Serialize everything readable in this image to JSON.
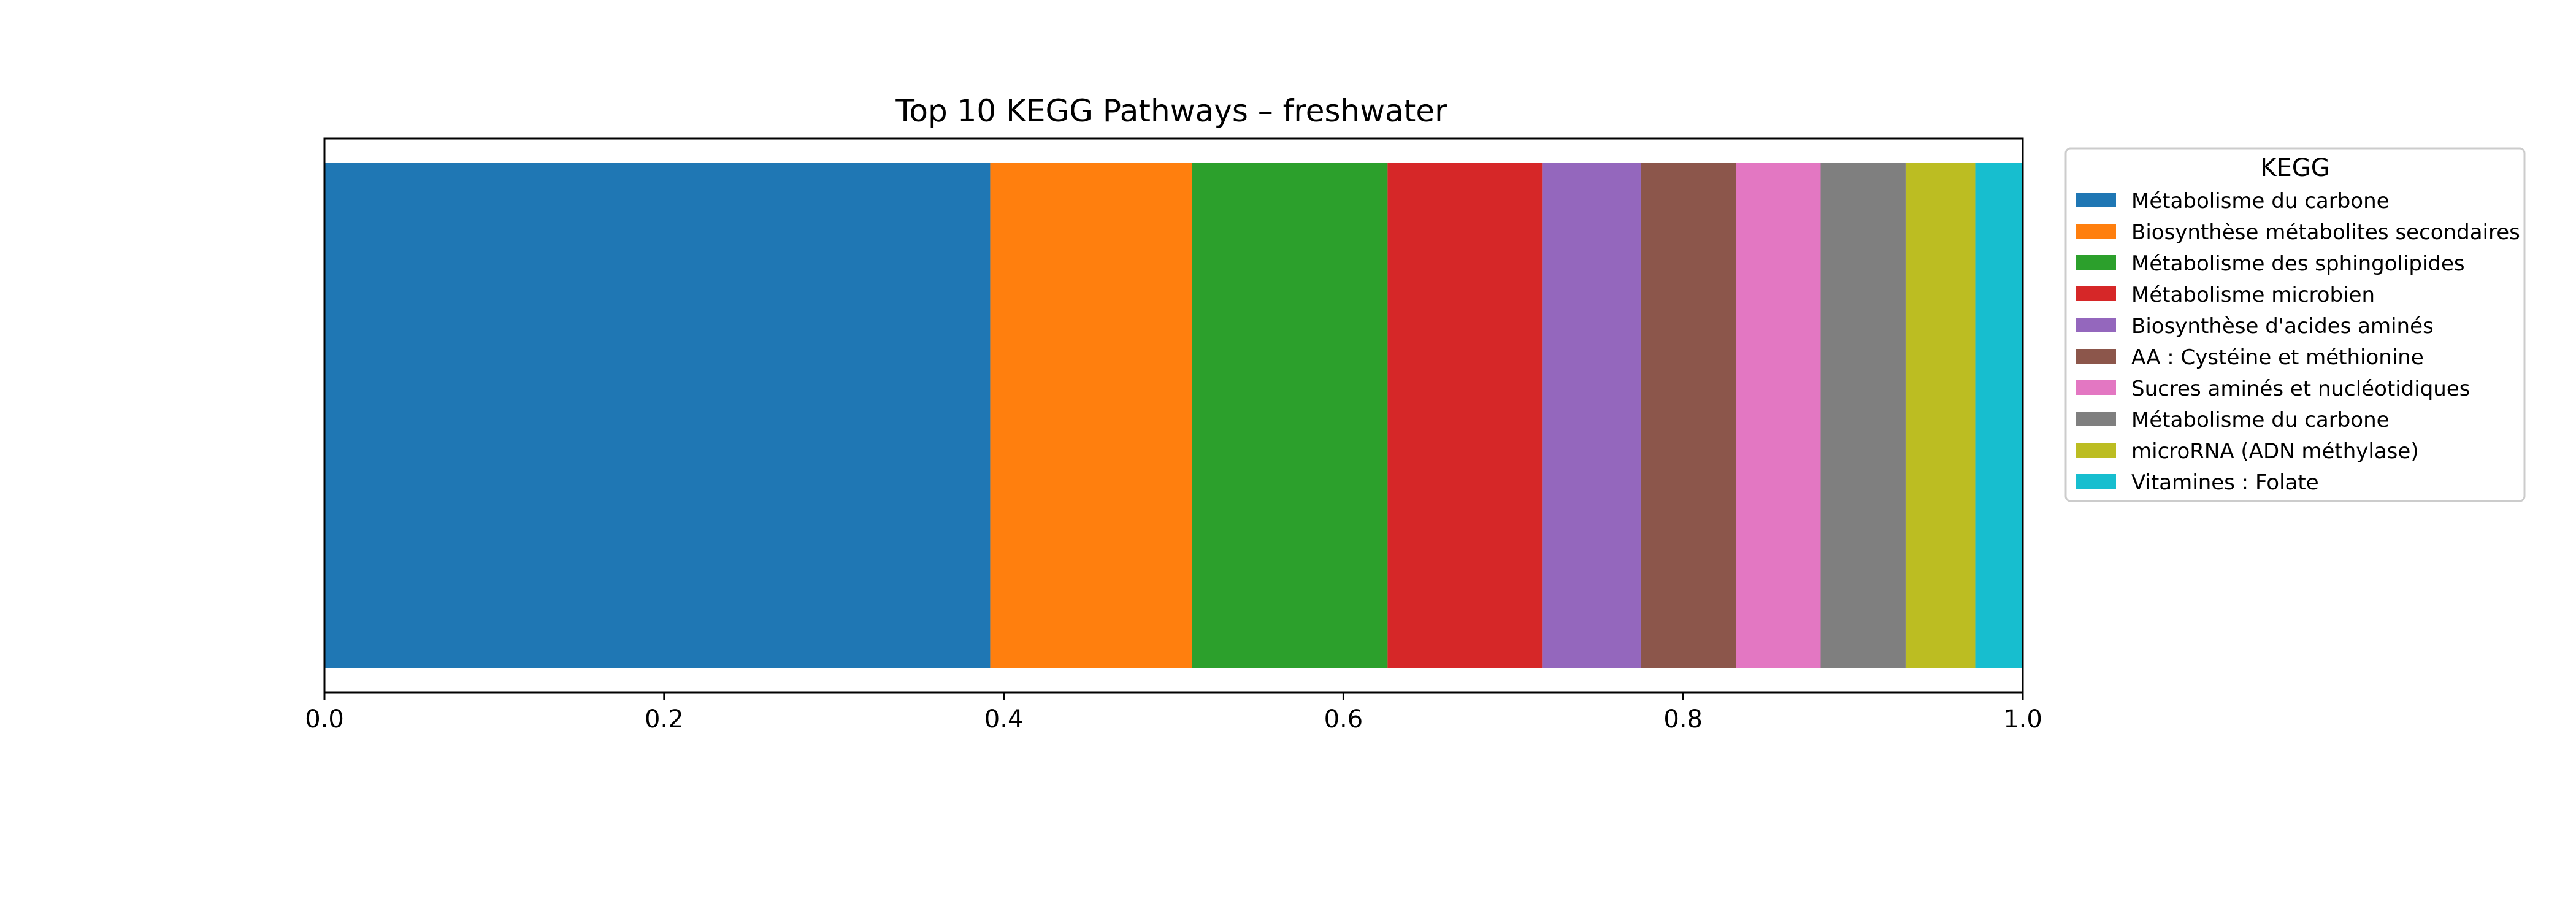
{
  "chart_data": {
    "type": "bar",
    "orientation": "horizontal-stacked",
    "title": "Top 10 KEGG Pathways – freshwater",
    "xlabel": "",
    "ylabel": "",
    "xlim": [
      0.0,
      1.0
    ],
    "x_ticks": [
      "0.0",
      "0.2",
      "0.4",
      "0.6",
      "0.8",
      "1.0"
    ],
    "grid": false,
    "legend": {
      "title": "KEGG",
      "placement": "outside-right"
    },
    "series": [
      {
        "name": "Métabolisme du carbone",
        "value": 0.392,
        "color": "#1f77b4"
      },
      {
        "name": "Biosynthèse métabolites secondaires",
        "value": 0.119,
        "color": "#ff7f0e"
      },
      {
        "name": "Métabolisme des sphingolipides",
        "value": 0.115,
        "color": "#2ca02c"
      },
      {
        "name": "Métabolisme microbien",
        "value": 0.091,
        "color": "#d62728"
      },
      {
        "name": "Biosynthèse d'acides aminés",
        "value": 0.058,
        "color": "#9467bd"
      },
      {
        "name": "AA : Cystéine et méthionine",
        "value": 0.056,
        "color": "#8c564b"
      },
      {
        "name": "Sucres aminés et nucléotidiques",
        "value": 0.05,
        "color": "#e377c2"
      },
      {
        "name": "Métabolisme du carbone",
        "value": 0.05,
        "color": "#7f7f7f"
      },
      {
        "name": "microRNA (ADN méthylase)",
        "value": 0.041,
        "color": "#bcbd22"
      },
      {
        "name": "Vitamines : Folate",
        "value": 0.028,
        "color": "#17becf"
      }
    ]
  }
}
